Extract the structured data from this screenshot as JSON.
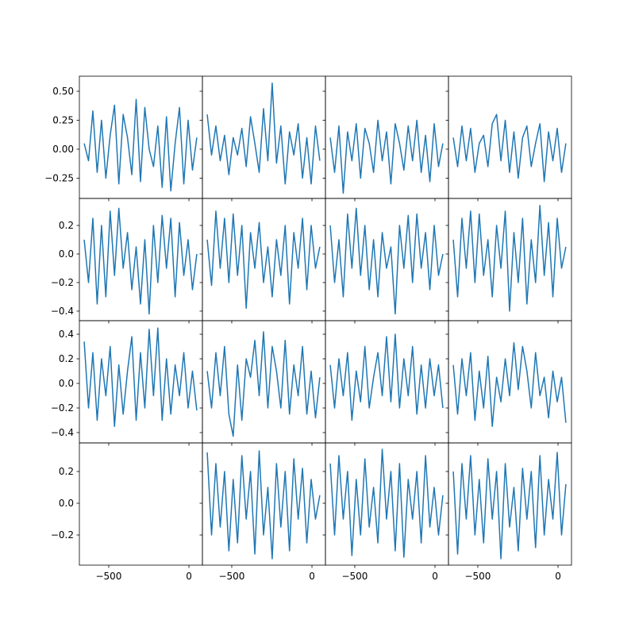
{
  "chart_data": {
    "type": "line",
    "color": "#1f77b4",
    "xlim": [
      -683,
      84
    ],
    "xticks": [
      {
        "value": -500,
        "label": "−500"
      },
      0
    ],
    "rows": [
      {
        "ylim": [
          -0.425,
          0.63
        ],
        "yticks": [
          {
            "value": -0.25,
            "label": "−0.25"
          },
          {
            "value": 0,
            "label": "0.00"
          },
          {
            "value": 0.25,
            "label": "0.25"
          },
          {
            "value": 0.5,
            "label": "0.50"
          }
        ],
        "panels": [
          {
            "x": [
              -653,
              -626,
              -599,
              -572,
              -545,
              -518,
              -491,
              -464,
              -437,
              -410,
              -383,
              -356,
              -329,
              -302,
              -275,
              -248,
              -221,
              -194,
              -167,
              -140,
              -113,
              -86,
              -59,
              -32,
              -5,
              22,
              49
            ],
            "values": [
              0.05,
              -0.1,
              0.33,
              -0.2,
              0.25,
              -0.25,
              0.12,
              0.38,
              -0.3,
              0.3,
              0.1,
              -0.22,
              0.43,
              -0.28,
              0.36,
              0.0,
              -0.15,
              0.2,
              -0.33,
              0.28,
              -0.36,
              0.05,
              0.36,
              -0.3,
              0.25,
              -0.18,
              0.1
            ]
          },
          {
            "x": [
              -653,
              -626,
              -599,
              -572,
              -545,
              -518,
              -491,
              -464,
              -437,
              -410,
              -383,
              -356,
              -329,
              -302,
              -275,
              -248,
              -221,
              -194,
              -167,
              -140,
              -113,
              -86,
              -59,
              -32,
              -5,
              22,
              49
            ],
            "values": [
              0.3,
              -0.05,
              0.2,
              -0.1,
              0.12,
              -0.22,
              0.1,
              -0.05,
              0.18,
              -0.15,
              0.28,
              0.05,
              -0.2,
              0.35,
              -0.1,
              0.57,
              -0.12,
              0.2,
              -0.3,
              0.15,
              -0.05,
              0.22,
              -0.25,
              0.1,
              -0.3,
              0.2,
              -0.1
            ]
          },
          {
            "x": [
              -653,
              -626,
              -599,
              -572,
              -545,
              -518,
              -491,
              -464,
              -437,
              -410,
              -383,
              -356,
              -329,
              -302,
              -275,
              -248,
              -221,
              -194,
              -167,
              -140,
              -113,
              -86,
              -59,
              -32,
              -5,
              22,
              49
            ],
            "values": [
              0.1,
              -0.2,
              0.2,
              -0.38,
              0.15,
              -0.1,
              0.22,
              -0.25,
              0.18,
              0.05,
              -0.2,
              0.25,
              -0.1,
              0.15,
              -0.3,
              0.22,
              0.05,
              -0.18,
              0.2,
              -0.1,
              0.25,
              -0.2,
              0.12,
              -0.28,
              0.22,
              -0.15,
              0.05
            ]
          },
          {
            "x": [
              -653,
              -626,
              -599,
              -572,
              -545,
              -518,
              -491,
              -464,
              -437,
              -410,
              -383,
              -356,
              -329,
              -302,
              -275,
              -248,
              -221,
              -194,
              -167,
              -140,
              -113,
              -86,
              -59,
              -32,
              -5,
              22,
              49
            ],
            "values": [
              0.1,
              -0.15,
              0.2,
              -0.1,
              0.18,
              -0.2,
              0.05,
              0.12,
              -0.15,
              0.22,
              0.3,
              -0.1,
              0.25,
              -0.2,
              0.15,
              -0.25,
              0.1,
              0.2,
              -0.15,
              0.05,
              0.22,
              -0.28,
              0.15,
              -0.1,
              0.18,
              -0.2,
              0.05
            ]
          }
        ]
      },
      {
        "ylim": [
          -0.467,
          0.389
        ],
        "yticks": [
          {
            "value": -0.4,
            "label": "−0.4"
          },
          {
            "value": -0.2,
            "label": "−0.2"
          },
          {
            "value": 0,
            "label": "0.0"
          },
          0.2
        ],
        "panels": [
          {
            "x": [
              -653,
              -626,
              -599,
              -572,
              -545,
              -518,
              -491,
              -464,
              -437,
              -410,
              -383,
              -356,
              -329,
              -302,
              -275,
              -248,
              -221,
              -194,
              -167,
              -140,
              -113,
              -86,
              -59,
              -32,
              -5,
              22,
              49
            ],
            "values": [
              0.1,
              -0.2,
              0.25,
              -0.35,
              0.2,
              -0.3,
              0.3,
              -0.15,
              0.32,
              -0.1,
              0.15,
              -0.25,
              0.05,
              -0.35,
              0.1,
              -0.42,
              0.2,
              -0.2,
              0.27,
              -0.1,
              0.25,
              -0.3,
              0.22,
              -0.15,
              0.1,
              -0.25,
              0.0
            ]
          },
          {
            "x": [
              -653,
              -626,
              -599,
              -572,
              -545,
              -518,
              -491,
              -464,
              -437,
              -410,
              -383,
              -356,
              -329,
              -302,
              -275,
              -248,
              -221,
              -194,
              -167,
              -140,
              -113,
              -86,
              -59,
              -32,
              -5,
              22,
              49
            ],
            "values": [
              0.1,
              -0.22,
              0.3,
              -0.1,
              0.25,
              -0.2,
              0.28,
              -0.15,
              0.2,
              -0.38,
              0.15,
              -0.1,
              0.22,
              -0.2,
              0.05,
              -0.3,
              0.1,
              -0.15,
              0.2,
              -0.35,
              0.15,
              -0.1,
              0.25,
              -0.25,
              0.2,
              -0.1,
              0.05
            ]
          },
          {
            "x": [
              -653,
              -626,
              -599,
              -572,
              -545,
              -518,
              -491,
              -464,
              -437,
              -410,
              -383,
              -356,
              -329,
              -302,
              -275,
              -248,
              -221,
              -194,
              -167,
              -140,
              -113,
              -86,
              -59,
              -32,
              -5,
              22,
              49
            ],
            "values": [
              0.2,
              -0.2,
              0.1,
              -0.3,
              0.28,
              -0.1,
              0.32,
              -0.15,
              0.2,
              -0.25,
              0.1,
              -0.3,
              0.15,
              -0.1,
              0.05,
              -0.42,
              0.2,
              -0.1,
              0.27,
              -0.2,
              0.28,
              -0.1,
              0.15,
              -0.25,
              0.2,
              -0.15,
              0.0
            ]
          },
          {
            "x": [
              -653,
              -626,
              -599,
              -572,
              -545,
              -518,
              -491,
              -464,
              -437,
              -410,
              -383,
              -356,
              -329,
              -302,
              -275,
              -248,
              -221,
              -194,
              -167,
              -140,
              -113,
              -86,
              -59,
              -32,
              -5,
              22,
              49
            ],
            "values": [
              0.1,
              -0.3,
              0.25,
              -0.1,
              0.3,
              -0.2,
              0.28,
              -0.15,
              0.1,
              -0.3,
              0.2,
              -0.1,
              0.3,
              -0.4,
              0.15,
              -0.2,
              0.25,
              -0.35,
              0.1,
              -0.2,
              0.34,
              -0.15,
              0.22,
              -0.3,
              0.25,
              -0.1,
              0.05
            ]
          }
        ]
      },
      {
        "ylim": [
          -0.484,
          0.51
        ],
        "yticks": [
          {
            "value": -0.4,
            "label": "−0.4"
          },
          {
            "value": -0.2,
            "label": "−0.2"
          },
          {
            "value": 0,
            "label": "0.0"
          },
          0.2,
          0.4
        ],
        "panels": [
          {
            "x": [
              -653,
              -626,
              -599,
              -572,
              -545,
              -518,
              -491,
              -464,
              -437,
              -410,
              -383,
              -356,
              -329,
              -302,
              -275,
              -248,
              -221,
              -194,
              -167,
              -140,
              -113,
              -86,
              -59,
              -32,
              -5,
              22,
              49
            ],
            "values": [
              0.34,
              -0.2,
              0.25,
              -0.3,
              0.2,
              -0.1,
              0.3,
              -0.35,
              0.15,
              -0.25,
              0.1,
              0.38,
              -0.3,
              0.25,
              -0.2,
              0.44,
              -0.1,
              0.45,
              -0.3,
              0.2,
              -0.25,
              0.15,
              -0.1,
              0.25,
              -0.2,
              0.1,
              -0.22
            ]
          },
          {
            "x": [
              -653,
              -626,
              -599,
              -572,
              -545,
              -518,
              -491,
              -464,
              -437,
              -410,
              -383,
              -356,
              -329,
              -302,
              -275,
              -248,
              -221,
              -194,
              -167,
              -140,
              -113,
              -86,
              -59,
              -32,
              -5,
              22,
              49
            ],
            "values": [
              0.1,
              -0.2,
              0.25,
              -0.1,
              0.3,
              -0.25,
              -0.43,
              0.15,
              -0.3,
              0.2,
              0.05,
              0.35,
              -0.1,
              0.42,
              -0.2,
              0.3,
              0.1,
              -0.2,
              0.35,
              -0.25,
              0.15,
              -0.1,
              0.3,
              -0.25,
              0.1,
              -0.28,
              0.05
            ]
          },
          {
            "x": [
              -653,
              -626,
              -599,
              -572,
              -545,
              -518,
              -491,
              -464,
              -437,
              -410,
              -383,
              -356,
              -329,
              -302,
              -275,
              -248,
              -221,
              -194,
              -167,
              -140,
              -113,
              -86,
              -59,
              -32,
              -5,
              22,
              49
            ],
            "values": [
              0.15,
              -0.2,
              0.2,
              -0.1,
              0.25,
              -0.3,
              0.1,
              -0.15,
              0.3,
              -0.2,
              0.05,
              0.25,
              -0.1,
              0.38,
              -0.15,
              0.4,
              -0.2,
              0.2,
              -0.1,
              0.3,
              -0.25,
              0.15,
              -0.2,
              0.2,
              -0.1,
              0.15,
              -0.2
            ]
          },
          {
            "x": [
              -653,
              -626,
              -599,
              -572,
              -545,
              -518,
              -491,
              -464,
              -437,
              -410,
              -383,
              -356,
              -329,
              -302,
              -275,
              -248,
              -221,
              -194,
              -167,
              -140,
              -113,
              -86,
              -59,
              -32,
              -5,
              22,
              49
            ],
            "values": [
              0.15,
              -0.25,
              0.2,
              -0.1,
              0.25,
              -0.3,
              0.1,
              -0.2,
              0.22,
              -0.35,
              0.05,
              -0.15,
              0.2,
              -0.1,
              0.33,
              -0.05,
              0.3,
              0.1,
              -0.2,
              0.25,
              -0.1,
              0.05,
              -0.28,
              0.1,
              -0.15,
              0.05,
              -0.32
            ]
          }
        ]
      },
      {
        "ylim": [
          -0.39,
          0.38
        ],
        "yticks": [
          {
            "value": -0.2,
            "label": "−0.2"
          },
          {
            "value": 0,
            "label": "0.0"
          },
          0.2
        ],
        "panels": [
          null,
          {
            "x": [
              -653,
              -626,
              -599,
              -572,
              -545,
              -518,
              -491,
              -464,
              -437,
              -410,
              -383,
              -356,
              -329,
              -302,
              -275,
              -248,
              -221,
              -194,
              -167,
              -140,
              -113,
              -86,
              -59,
              -32,
              -5,
              22,
              49
            ],
            "values": [
              0.32,
              -0.2,
              0.25,
              -0.15,
              0.2,
              -0.3,
              0.15,
              -0.25,
              0.3,
              -0.1,
              0.2,
              -0.32,
              0.33,
              -0.2,
              0.1,
              -0.35,
              0.25,
              -0.15,
              0.2,
              -0.3,
              0.28,
              -0.1,
              0.22,
              -0.25,
              0.15,
              -0.1,
              0.05
            ]
          },
          {
            "x": [
              -653,
              -626,
              -599,
              -572,
              -545,
              -518,
              -491,
              -464,
              -437,
              -410,
              -383,
              -356,
              -329,
              -302,
              -275,
              -248,
              -221,
              -194,
              -167,
              -140,
              -113,
              -86,
              -59,
              -32,
              -5,
              22,
              49
            ],
            "values": [
              0.25,
              -0.2,
              0.3,
              -0.1,
              0.2,
              -0.33,
              0.15,
              -0.2,
              0.28,
              -0.15,
              0.1,
              -0.25,
              0.34,
              -0.1,
              0.2,
              -0.3,
              0.25,
              -0.34,
              0.15,
              -0.1,
              0.2,
              -0.25,
              0.3,
              -0.15,
              0.1,
              -0.2,
              0.05
            ]
          },
          {
            "x": [
              -653,
              -626,
              -599,
              -572,
              -545,
              -518,
              -491,
              -464,
              -437,
              -410,
              -383,
              -356,
              -329,
              -302,
              -275,
              -248,
              -221,
              -194,
              -167,
              -140,
              -113,
              -86,
              -59,
              -32,
              -5,
              22,
              49
            ],
            "values": [
              0.2,
              -0.32,
              0.25,
              -0.1,
              0.3,
              -0.2,
              0.15,
              -0.25,
              0.28,
              -0.1,
              0.2,
              -0.35,
              0.25,
              -0.15,
              0.1,
              -0.3,
              0.22,
              -0.1,
              0.2,
              -0.28,
              0.3,
              -0.2,
              0.15,
              -0.1,
              0.32,
              -0.2,
              0.12
            ]
          }
        ]
      }
    ]
  }
}
